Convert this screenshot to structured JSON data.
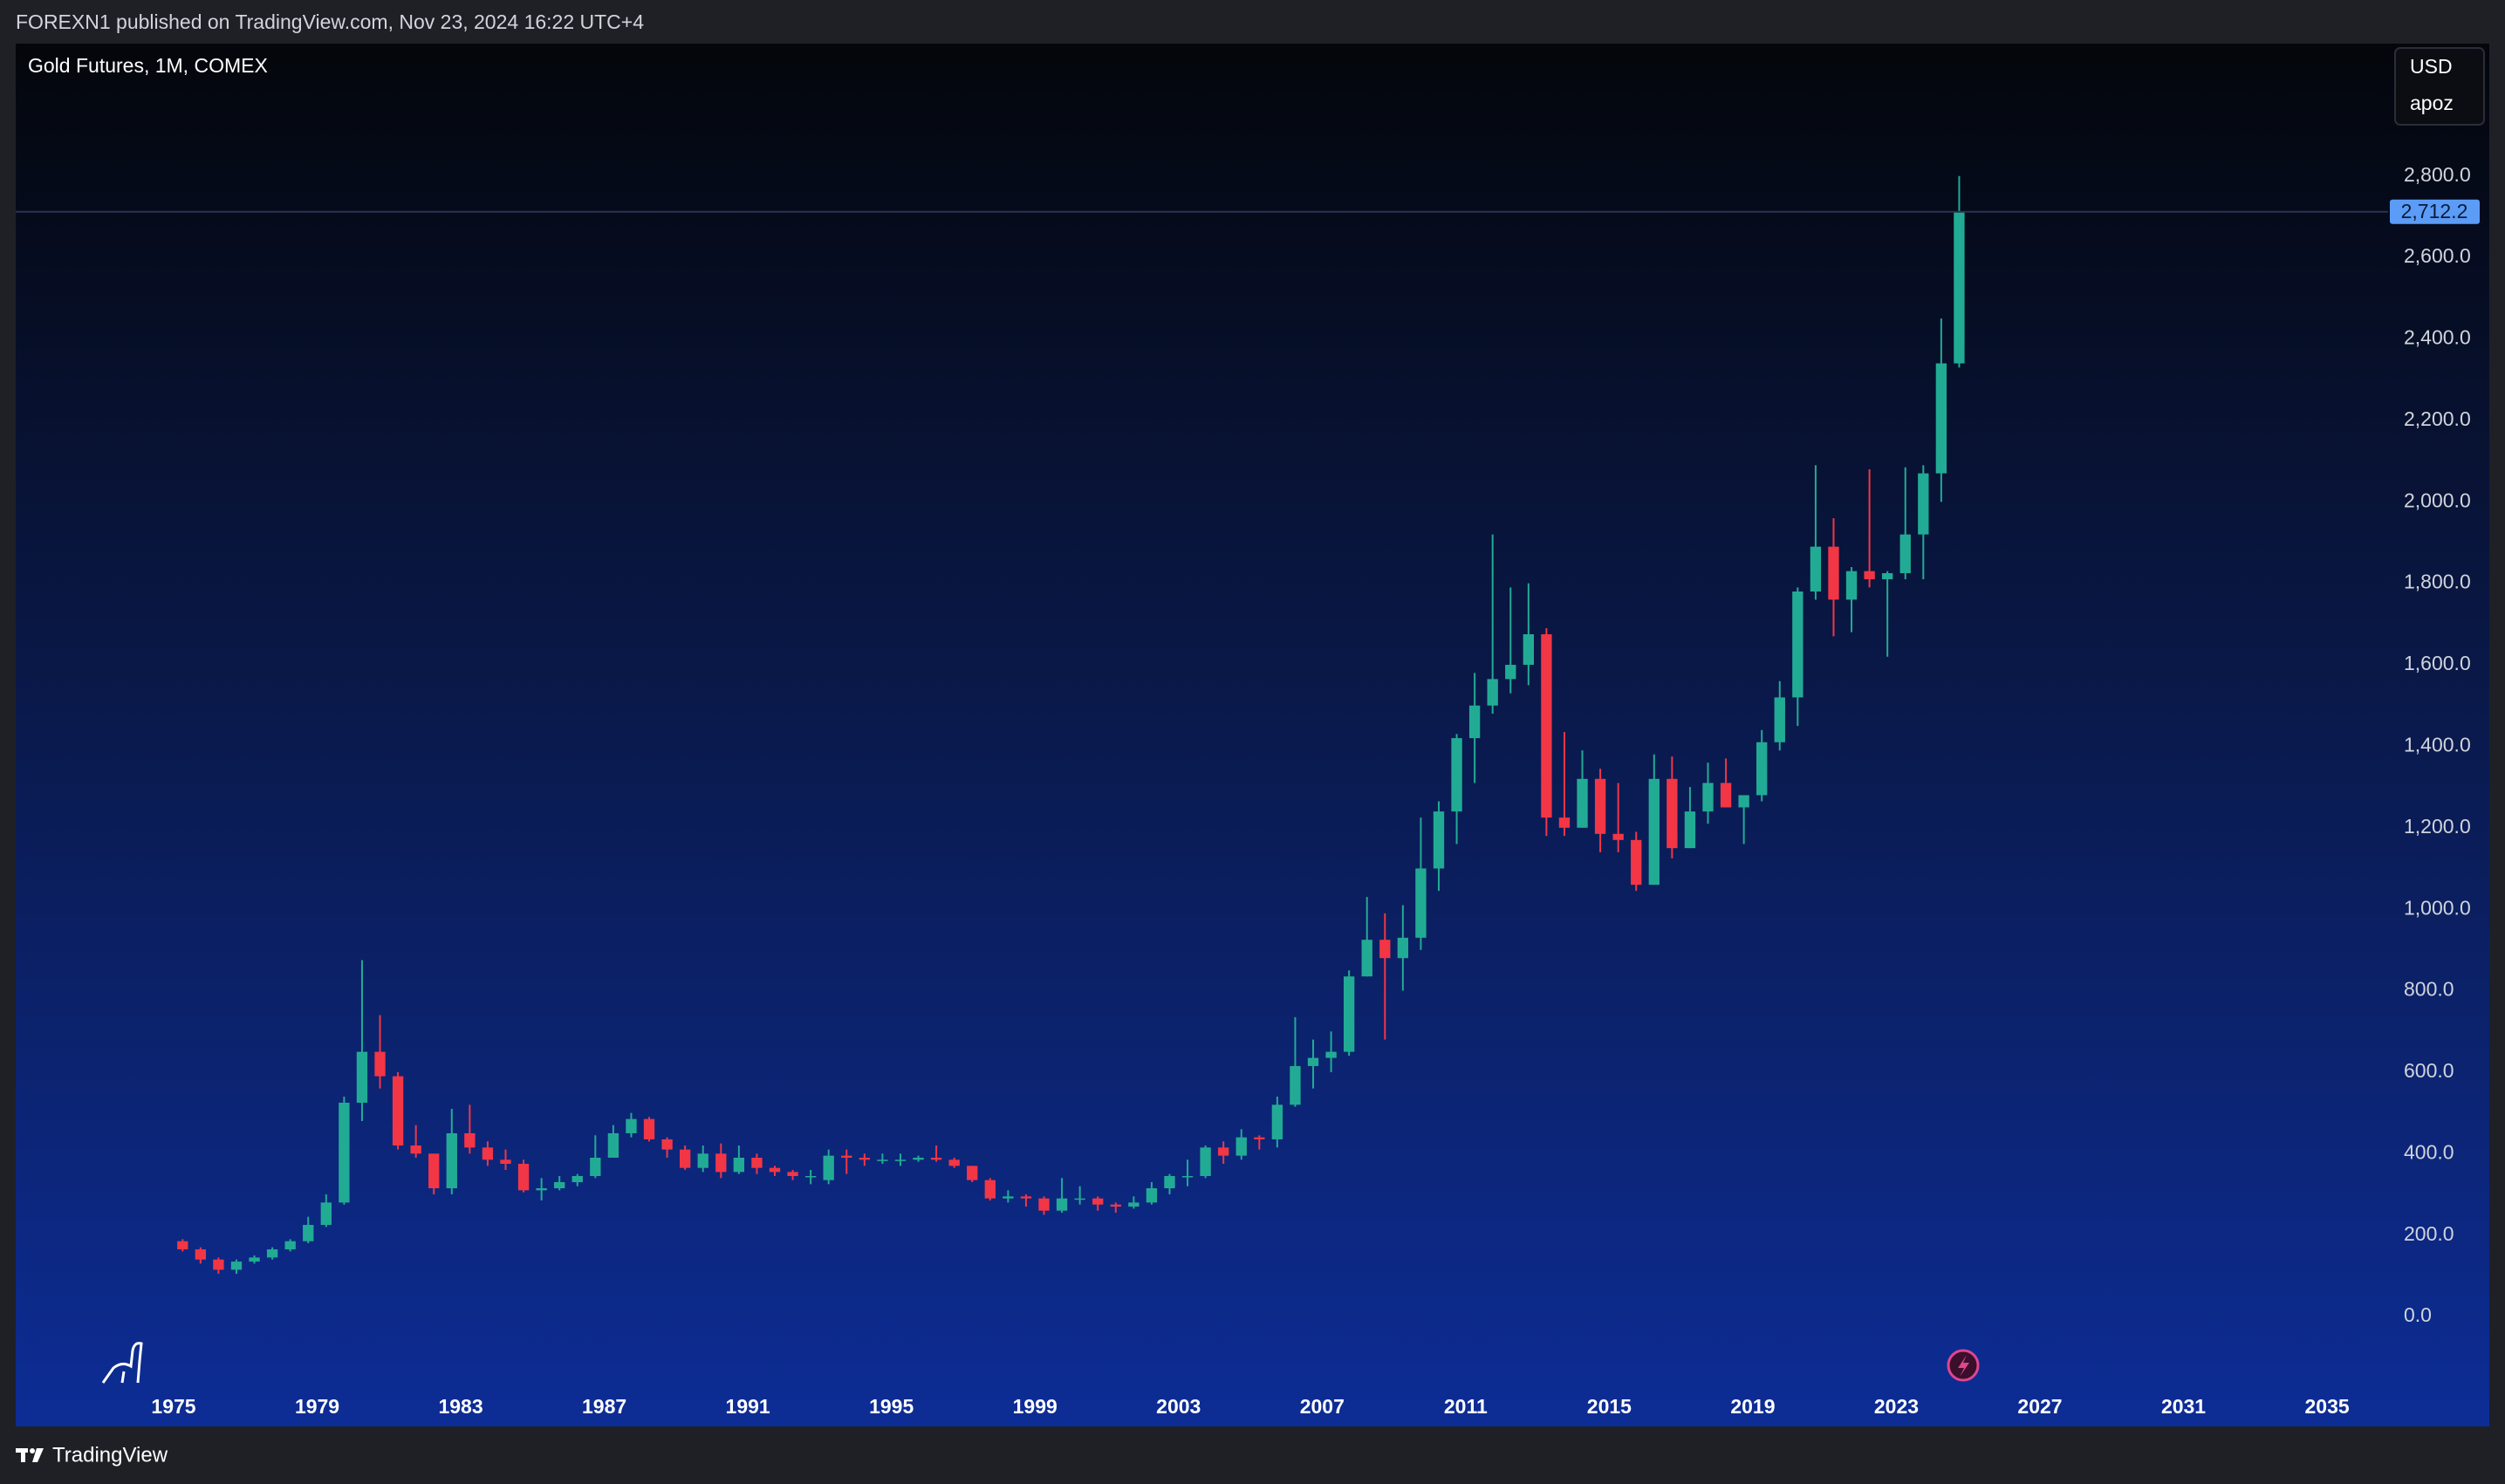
{
  "header": {
    "publisher": "FOREXN1 published on TradingView.com, Nov 23, 2024 16:22 UTC+4"
  },
  "footer": {
    "brand": "TradingView"
  },
  "chart_data": {
    "type": "candlestick",
    "title": "Gold Futures, 1M, COMEX",
    "currency": "USD",
    "scale_label": "apoz",
    "up_color": "#22ab94",
    "down_color": "#f23645",
    "x": [
      1975.0,
      1975.5,
      1976.0,
      1976.5,
      1977.0,
      1977.5,
      1978.0,
      1978.5,
      1979.0,
      1979.5,
      1980.0,
      1980.5,
      1981.0,
      1981.5,
      1982.0,
      1982.5,
      1983.0,
      1983.5,
      1984.0,
      1984.5,
      1985.0,
      1985.5,
      1986.0,
      1986.5,
      1987.0,
      1987.5,
      1988.0,
      1988.5,
      1989.0,
      1989.5,
      1990.0,
      1990.5,
      1991.0,
      1991.5,
      1992.0,
      1992.5,
      1993.0,
      1993.5,
      1994.0,
      1994.5,
      1995.0,
      1995.5,
      1996.0,
      1996.5,
      1997.0,
      1997.5,
      1998.0,
      1998.5,
      1999.0,
      1999.5,
      2000.0,
      2000.5,
      2001.0,
      2001.5,
      2002.0,
      2002.5,
      2003.0,
      2003.5,
      2004.0,
      2004.5,
      2005.0,
      2005.5,
      2006.0,
      2006.5,
      2007.0,
      2007.5,
      2008.0,
      2008.5,
      2009.0,
      2009.5,
      2010.0,
      2010.5,
      2011.0,
      2011.5,
      2012.0,
      2012.5,
      2013.0,
      2013.5,
      2014.0,
      2014.5,
      2015.0,
      2015.5,
      2016.0,
      2016.5,
      2017.0,
      2017.5,
      2018.0,
      2018.5,
      2019.0,
      2019.5,
      2020.0,
      2020.5,
      2021.0,
      2021.5,
      2022.0,
      2022.5,
      2023.0,
      2023.5,
      2024.0,
      2024.5
    ],
    "open": [
      185,
      165,
      140,
      115,
      135,
      145,
      165,
      185,
      225,
      280,
      525,
      650,
      590,
      420,
      400,
      315,
      450,
      415,
      385,
      375,
      310,
      315,
      330,
      345,
      390,
      450,
      485,
      435,
      410,
      365,
      400,
      355,
      390,
      365,
      355,
      345,
      335,
      395,
      390,
      385,
      385,
      385,
      390,
      385,
      370,
      335,
      290,
      295,
      290,
      260,
      290,
      290,
      275,
      270,
      280,
      315,
      345,
      345,
      415,
      395,
      440,
      435,
      520,
      615,
      635,
      650,
      835,
      925,
      880,
      930,
      1100,
      1240,
      1420,
      1500,
      1565,
      1600,
      1675,
      1225,
      1200,
      1320,
      1185,
      1170,
      1060,
      1320,
      1150,
      1240,
      1310,
      1250,
      1280,
      1410,
      1520,
      1780,
      1890,
      1760,
      1830,
      1810,
      1825,
      1920,
      2070,
      2340
    ],
    "high": [
      190,
      170,
      145,
      140,
      150,
      170,
      190,
      245,
      300,
      540,
      875,
      740,
      600,
      470,
      400,
      510,
      520,
      430,
      410,
      385,
      340,
      345,
      350,
      445,
      470,
      500,
      490,
      440,
      420,
      420,
      425,
      420,
      400,
      370,
      360,
      360,
      410,
      410,
      400,
      400,
      400,
      395,
      420,
      390,
      370,
      340,
      310,
      300,
      295,
      340,
      320,
      295,
      280,
      295,
      330,
      350,
      385,
      420,
      430,
      460,
      445,
      540,
      735,
      680,
      700,
      850,
      1030,
      990,
      1010,
      1225,
      1265,
      1430,
      1580,
      1920,
      1790,
      1800,
      1690,
      1435,
      1390,
      1345,
      1310,
      1190,
      1380,
      1375,
      1300,
      1360,
      1370,
      1260,
      1440,
      1560,
      1790,
      2090,
      1960,
      1840,
      2080,
      1830,
      2085,
      2090,
      2450,
      2800
    ],
    "low": [
      160,
      130,
      105,
      105,
      130,
      140,
      160,
      180,
      220,
      275,
      480,
      560,
      410,
      390,
      300,
      300,
      400,
      370,
      360,
      305,
      285,
      310,
      320,
      340,
      390,
      440,
      430,
      390,
      360,
      355,
      340,
      350,
      350,
      345,
      335,
      325,
      325,
      350,
      370,
      375,
      370,
      380,
      380,
      365,
      330,
      285,
      280,
      270,
      250,
      255,
      275,
      260,
      255,
      265,
      275,
      300,
      320,
      340,
      375,
      385,
      410,
      415,
      515,
      560,
      600,
      640,
      835,
      680,
      800,
      900,
      1045,
      1160,
      1310,
      1480,
      1530,
      1550,
      1180,
      1180,
      1200,
      1140,
      1140,
      1045,
      1060,
      1125,
      1150,
      1210,
      1250,
      1160,
      1265,
      1390,
      1450,
      1760,
      1670,
      1680,
      1790,
      1620,
      1810,
      1810,
      2000,
      2330
    ],
    "close": [
      165,
      140,
      115,
      135,
      145,
      165,
      185,
      225,
      280,
      525,
      650,
      590,
      420,
      400,
      315,
      450,
      415,
      385,
      375,
      310,
      315,
      330,
      345,
      390,
      450,
      485,
      435,
      410,
      365,
      400,
      355,
      390,
      365,
      355,
      345,
      345,
      395,
      390,
      385,
      385,
      385,
      390,
      385,
      370,
      335,
      290,
      295,
      290,
      260,
      290,
      290,
      275,
      270,
      280,
      315,
      345,
      345,
      415,
      395,
      440,
      435,
      520,
      615,
      635,
      650,
      835,
      925,
      880,
      930,
      1100,
      1240,
      1420,
      1500,
      1565,
      1600,
      1675,
      1225,
      1200,
      1320,
      1185,
      1170,
      1060,
      1320,
      1150,
      1240,
      1310,
      1250,
      1280,
      1410,
      1520,
      1780,
      1890,
      1760,
      1830,
      1810,
      1825,
      1920,
      2070,
      2340,
      2712.2
    ],
    "last_price": {
      "value": 2712.2,
      "label": "2,712.2"
    },
    "xlim": [
      1970.6,
      2036.7
    ],
    "xticks": [
      1975,
      1979,
      1983,
      1987,
      1991,
      1995,
      1999,
      2003,
      2007,
      2011,
      2015,
      2019,
      2023,
      2027,
      2031,
      2035
    ],
    "ylim": [
      -184,
      3125
    ],
    "yticks": [
      {
        "value": 0,
        "label": "0.0"
      },
      {
        "value": 200,
        "label": "200.0"
      },
      {
        "value": 400,
        "label": "400.0"
      },
      {
        "value": 600,
        "label": "600.0"
      },
      {
        "value": 800,
        "label": "800.0"
      },
      {
        "value": 1000,
        "label": "1,000.0"
      },
      {
        "value": 1200,
        "label": "1,200.0"
      },
      {
        "value": 1400,
        "label": "1,400.0"
      },
      {
        "value": 1600,
        "label": "1,600.0"
      },
      {
        "value": 1800,
        "label": "1,800.0"
      },
      {
        "value": 2000,
        "label": "2,000.0"
      },
      {
        "value": 2200,
        "label": "2,200.0"
      },
      {
        "value": 2400,
        "label": "2,400.0"
      },
      {
        "value": 2600,
        "label": "2,600.0"
      },
      {
        "value": 2800,
        "label": "2,800.0"
      }
    ]
  }
}
